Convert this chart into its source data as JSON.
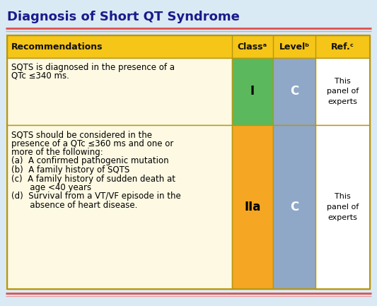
{
  "title": "Diagnosis of Short QT Syndrome",
  "title_color": "#1a1a8c",
  "bg_color": "#daeaf5",
  "header_bg": "#f5c518",
  "row1_bg": "#fdf9e3",
  "row2_bg": "#fdf9e3",
  "class1_bg": "#5cb85c",
  "class2_bg": "#f5a623",
  "level_bg": "#8fa8c8",
  "ref_bg": "#ffffff",
  "border_color": "#b8960c",
  "red_line1": "#d9534f",
  "red_line2": "#e8a0a0",
  "col_headers": [
    "Recommendations",
    "Classᵃ",
    "Levelᵇ",
    "Ref.ᶜ"
  ],
  "row1_text_line1": "SQTS is diagnosed in the presence of a",
  "row1_text_line2": "QTc ≤340 ms.",
  "row1_class": "I",
  "row1_level": "C",
  "row1_ref": "This\npanel of\nexperts",
  "row2_lines": [
    "SQTS should be considered in the",
    "presence of a QTc ≤360 ms and one or",
    "more of the following:",
    "(a)  A confirmed pathogenic mutation",
    "(b)  A family history of SQTS",
    "(c)  A family history of sudden death at",
    "       age <40 years",
    "(d)  Survival from a VT/VF episode in the",
    "       absence of heart disease."
  ],
  "row2_class": "IIa",
  "row2_level": "C",
  "row2_ref": "This\npanel of\nexperts",
  "title_fontsize": 13,
  "header_fontsize": 9,
  "body_fontsize": 8.5,
  "class_fontsize": 12,
  "ref_fontsize": 8
}
